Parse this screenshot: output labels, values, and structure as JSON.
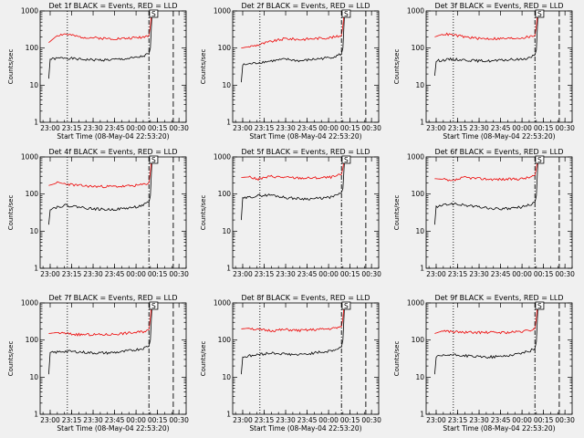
{
  "chart_data": [
    {
      "type": "line",
      "title": "Det 1f BLACK = Events, RED = LLD",
      "ylabel": "Counts/sec",
      "xlabel": "Start Time (08-May-04 22:53:20)",
      "x_ticks": [
        "23:00",
        "23:15",
        "23:30",
        "23:45",
        "00:00",
        "00:15",
        "00:30"
      ],
      "y_ticks": [
        "1",
        "10",
        "100",
        "1000"
      ],
      "yscale": "log",
      "ylim": [
        1,
        1000
      ],
      "series": [
        {
          "color": "#000000",
          "x": [
            "22:59",
            "23:00",
            "23:10",
            "23:20",
            "23:30",
            "23:40",
            "23:50",
            "00:00",
            "00:05",
            "00:09",
            "00:10",
            "00:11"
          ],
          "y": [
            15,
            50,
            55,
            50,
            48,
            48,
            50,
            55,
            60,
            70,
            100,
            700
          ]
        },
        {
          "color": "#ee0000",
          "x": [
            "22:59",
            "23:05",
            "23:10",
            "23:20",
            "23:30",
            "23:40",
            "23:50",
            "00:00",
            "00:05",
            "00:09",
            "00:10",
            "00:11"
          ],
          "y": [
            140,
            220,
            240,
            200,
            190,
            180,
            180,
            190,
            200,
            220,
            400,
            1000
          ]
        }
      ]
    },
    {
      "type": "line",
      "title": "Det 2f BLACK = Events, RED = LLD",
      "ylabel": "Counts/sec",
      "xlabel": "Start Time (08-May-04 22:53:20)",
      "x_ticks": [
        "23:00",
        "23:15",
        "23:30",
        "23:45",
        "00:00",
        "00:15",
        "00:30"
      ],
      "y_ticks": [
        "1",
        "10",
        "100",
        "1000"
      ],
      "yscale": "log",
      "ylim": [
        1,
        1000
      ],
      "series": [
        {
          "color": "#000000",
          "x": [
            "22:59",
            "23:00",
            "23:10",
            "23:20",
            "23:30",
            "23:40",
            "23:50",
            "00:00",
            "00:05",
            "00:09",
            "00:10",
            "00:11"
          ],
          "y": [
            12,
            35,
            40,
            45,
            50,
            45,
            50,
            55,
            60,
            70,
            100,
            700
          ]
        },
        {
          "color": "#ee0000",
          "x": [
            "22:59",
            "23:05",
            "23:10",
            "23:20",
            "23:30",
            "23:40",
            "23:50",
            "00:00",
            "00:05",
            "00:09",
            "00:10",
            "00:11"
          ],
          "y": [
            100,
            110,
            120,
            150,
            180,
            170,
            180,
            190,
            200,
            220,
            400,
            1000
          ]
        }
      ]
    },
    {
      "type": "line",
      "title": "Det 3f BLACK = Events, RED = LLD",
      "ylabel": "Counts/sec",
      "xlabel": "Start Time (08-May-04 22:53:20)",
      "x_ticks": [
        "23:00",
        "23:15",
        "23:30",
        "23:45",
        "00:00",
        "00:15",
        "00:30"
      ],
      "y_ticks": [
        "1",
        "10",
        "100",
        "1000"
      ],
      "yscale": "log",
      "ylim": [
        1,
        1000
      ],
      "series": [
        {
          "color": "#000000",
          "x": [
            "22:59",
            "23:00",
            "23:10",
            "23:20",
            "23:30",
            "23:40",
            "23:50",
            "00:00",
            "00:05",
            "00:09",
            "00:10",
            "00:11"
          ],
          "y": [
            18,
            45,
            50,
            48,
            45,
            45,
            48,
            50,
            55,
            65,
            90,
            700
          ]
        },
        {
          "color": "#ee0000",
          "x": [
            "22:59",
            "23:05",
            "23:10",
            "23:20",
            "23:30",
            "23:40",
            "23:50",
            "00:00",
            "00:05",
            "00:09",
            "00:10",
            "00:11"
          ],
          "y": [
            200,
            240,
            230,
            200,
            180,
            180,
            180,
            190,
            200,
            220,
            400,
            1000
          ]
        }
      ]
    },
    {
      "type": "line",
      "title": "Det 4f BLACK = Events, RED = LLD",
      "ylabel": "Counts/sec",
      "xlabel": "",
      "x_ticks": [
        "23:00",
        "23:15",
        "23:30",
        "23:45",
        "00:00",
        "00:15",
        "00:30"
      ],
      "y_ticks": [
        "1",
        "10",
        "100",
        "1000"
      ],
      "yscale": "log",
      "ylim": [
        1,
        1000
      ],
      "series": [
        {
          "color": "#000000",
          "x": [
            "22:59",
            "23:00",
            "23:10",
            "23:20",
            "23:30",
            "23:40",
            "23:50",
            "00:00",
            "00:05",
            "00:09",
            "00:10",
            "00:11"
          ],
          "y": [
            15,
            40,
            50,
            45,
            40,
            38,
            40,
            45,
            50,
            60,
            90,
            700
          ]
        },
        {
          "color": "#ee0000",
          "x": [
            "22:59",
            "23:05",
            "23:10",
            "23:20",
            "23:30",
            "23:40",
            "23:50",
            "00:00",
            "00:05",
            "00:09",
            "00:10",
            "00:11"
          ],
          "y": [
            170,
            200,
            190,
            170,
            160,
            160,
            160,
            170,
            180,
            200,
            400,
            1000
          ]
        }
      ]
    },
    {
      "type": "line",
      "title": "Det 5f BLACK = Events, RED = LLD",
      "ylabel": "Counts/sec",
      "xlabel": "",
      "x_ticks": [
        "23:00",
        "23:15",
        "23:30",
        "23:45",
        "00:00",
        "00:15",
        "00:30"
      ],
      "y_ticks": [
        "1",
        "10",
        "100",
        "1000"
      ],
      "yscale": "log",
      "ylim": [
        1,
        1000
      ],
      "series": [
        {
          "color": "#000000",
          "x": [
            "22:59",
            "23:00",
            "23:10",
            "23:20",
            "23:30",
            "23:40",
            "23:50",
            "00:00",
            "00:05",
            "00:09",
            "00:10",
            "00:11"
          ],
          "y": [
            20,
            75,
            90,
            95,
            80,
            75,
            75,
            80,
            90,
            110,
            140,
            700
          ]
        },
        {
          "color": "#ee0000",
          "x": [
            "22:59",
            "23:05",
            "23:10",
            "23:20",
            "23:30",
            "23:40",
            "23:50",
            "00:00",
            "00:05",
            "00:09",
            "00:10",
            "00:11"
          ],
          "y": [
            280,
            290,
            250,
            300,
            280,
            270,
            270,
            280,
            300,
            340,
            500,
            1000
          ]
        }
      ]
    },
    {
      "type": "line",
      "title": "Det 6f BLACK = Events, RED = LLD",
      "ylabel": "Counts/sec",
      "xlabel": "",
      "x_ticks": [
        "23:00",
        "23:15",
        "23:30",
        "23:45",
        "00:00",
        "00:15",
        "00:30"
      ],
      "y_ticks": [
        "1",
        "10",
        "100",
        "1000"
      ],
      "yscale": "log",
      "ylim": [
        1,
        1000
      ],
      "series": [
        {
          "color": "#000000",
          "x": [
            "22:59",
            "23:00",
            "23:10",
            "23:20",
            "23:30",
            "23:40",
            "23:50",
            "00:00",
            "00:05",
            "00:09",
            "00:10",
            "00:11"
          ],
          "y": [
            15,
            45,
            55,
            50,
            45,
            40,
            40,
            45,
            50,
            60,
            90,
            700
          ]
        },
        {
          "color": "#ee0000",
          "x": [
            "22:59",
            "23:05",
            "23:10",
            "23:20",
            "23:30",
            "23:40",
            "23:50",
            "00:00",
            "00:05",
            "00:09",
            "00:10",
            "00:11"
          ],
          "y": [
            260,
            250,
            220,
            280,
            260,
            250,
            250,
            260,
            280,
            320,
            500,
            1000
          ]
        }
      ]
    },
    {
      "type": "line",
      "title": "Det 7f BLACK = Events, RED = LLD",
      "ylabel": "Counts/sec",
      "xlabel": "Start Time (08-May-04 22:53:20)",
      "x_ticks": [
        "23:00",
        "23:15",
        "23:30",
        "23:45",
        "00:00",
        "00:15",
        "00:30"
      ],
      "y_ticks": [
        "1",
        "10",
        "100",
        "1000"
      ],
      "yscale": "log",
      "ylim": [
        1,
        1000
      ],
      "series": [
        {
          "color": "#000000",
          "x": [
            "22:59",
            "23:00",
            "23:10",
            "23:20",
            "23:30",
            "23:40",
            "23:50",
            "00:00",
            "00:05",
            "00:09",
            "00:10",
            "00:11"
          ],
          "y": [
            12,
            45,
            50,
            48,
            45,
            45,
            48,
            55,
            60,
            70,
            100,
            700
          ]
        },
        {
          "color": "#ee0000",
          "x": [
            "22:59",
            "23:05",
            "23:10",
            "23:20",
            "23:30",
            "23:40",
            "23:50",
            "00:00",
            "00:05",
            "00:09",
            "00:10",
            "00:11"
          ],
          "y": [
            150,
            160,
            150,
            140,
            140,
            140,
            150,
            160,
            170,
            190,
            400,
            1000
          ]
        }
      ]
    },
    {
      "type": "line",
      "title": "Det 8f BLACK = Events, RED = LLD",
      "ylabel": "Counts/sec",
      "xlabel": "Start Time (08-May-04 22:53:20)",
      "x_ticks": [
        "23:00",
        "23:15",
        "23:30",
        "23:45",
        "00:00",
        "00:15",
        "00:30"
      ],
      "y_ticks": [
        "1",
        "10",
        "100",
        "1000"
      ],
      "yscale": "log",
      "ylim": [
        1,
        1000
      ],
      "series": [
        {
          "color": "#000000",
          "x": [
            "22:59",
            "23:00",
            "23:10",
            "23:20",
            "23:30",
            "23:40",
            "23:50",
            "00:00",
            "00:05",
            "00:09",
            "00:10",
            "00:11"
          ],
          "y": [
            12,
            35,
            40,
            45,
            42,
            40,
            45,
            50,
            55,
            65,
            100,
            700
          ]
        },
        {
          "color": "#ee0000",
          "x": [
            "22:59",
            "23:05",
            "23:10",
            "23:20",
            "23:30",
            "23:40",
            "23:50",
            "00:00",
            "00:05",
            "00:09",
            "00:10",
            "00:11"
          ],
          "y": [
            200,
            210,
            190,
            180,
            190,
            180,
            190,
            200,
            210,
            230,
            400,
            1000
          ]
        }
      ]
    },
    {
      "type": "line",
      "title": "Det 9f BLACK = Events, RED = LLD",
      "ylabel": "Counts/sec",
      "xlabel": "Start Time (08-May-04 22:53:20)",
      "x_ticks": [
        "23:00",
        "23:15",
        "23:30",
        "23:45",
        "00:00",
        "00:15",
        "00:30"
      ],
      "y_ticks": [
        "1",
        "10",
        "100",
        "1000"
      ],
      "yscale": "log",
      "ylim": [
        1,
        1000
      ],
      "series": [
        {
          "color": "#000000",
          "x": [
            "22:59",
            "23:00",
            "23:10",
            "23:20",
            "23:30",
            "23:40",
            "23:50",
            "00:00",
            "00:05",
            "00:09",
            "00:10",
            "00:11"
          ],
          "y": [
            12,
            35,
            40,
            38,
            35,
            35,
            38,
            45,
            50,
            60,
            90,
            700
          ]
        },
        {
          "color": "#ee0000",
          "x": [
            "22:59",
            "23:05",
            "23:10",
            "23:20",
            "23:30",
            "23:40",
            "23:50",
            "00:00",
            "00:05",
            "00:09",
            "00:10",
            "00:11"
          ],
          "y": [
            150,
            180,
            170,
            160,
            160,
            160,
            160,
            170,
            180,
            200,
            400,
            1000
          ]
        }
      ]
    }
  ],
  "markers": {
    "dotted_time": "23:12",
    "dashdot_time": "00:09",
    "dashed_time": "00:26",
    "box_time": "00:12",
    "box_label": "S"
  }
}
